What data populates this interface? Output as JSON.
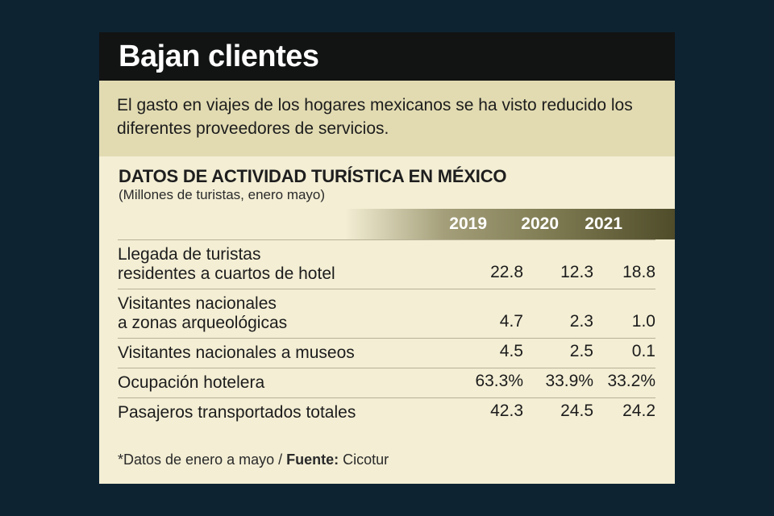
{
  "title": "Bajan clientes",
  "subtitle": "El gasto en viajes de los hogares mexicanos se ha visto reducido los diferentes proveedores de servicios.",
  "section_title": "DATOS DE ACTIVIDAD TURÍSTICA EN MÉXICO",
  "section_subtitle": "(Millones de turistas, enero mayo)",
  "footnote": {
    "note": "*Datos de enero a mayo / ",
    "source_label": "Fuente:",
    "source": " Cicotur"
  },
  "colors": {
    "background": "#0d2332",
    "header": "#121313",
    "subtitle_band": "#e2dbb2",
    "card": "#f3eed4",
    "year_bar_dark": "#4f4c2a"
  },
  "chart_data": {
    "type": "table",
    "title": "DATOS DE ACTIVIDAD TURÍSTICA EN MÉXICO",
    "columns": [
      "2019",
      "2020",
      "2021"
    ],
    "rows": [
      {
        "label": [
          "Llegada de turistas",
          "residentes a cuartos de hotel"
        ],
        "values": [
          "22.8",
          "12.3",
          "18.8"
        ]
      },
      {
        "label": [
          "Visitantes nacionales",
          "a zonas arqueológicas"
        ],
        "values": [
          "4.7",
          "2.3",
          "1.0"
        ]
      },
      {
        "label": [
          "Visitantes nacionales a museos"
        ],
        "values": [
          "4.5",
          "2.5",
          "0.1"
        ]
      },
      {
        "label": [
          "Ocupación hotelera"
        ],
        "values": [
          "63.3%",
          "33.9%",
          "33.2%"
        ]
      },
      {
        "label": [
          "Pasajeros transportados totales"
        ],
        "values": [
          "42.3",
          "24.5",
          "24.2"
        ]
      }
    ]
  }
}
